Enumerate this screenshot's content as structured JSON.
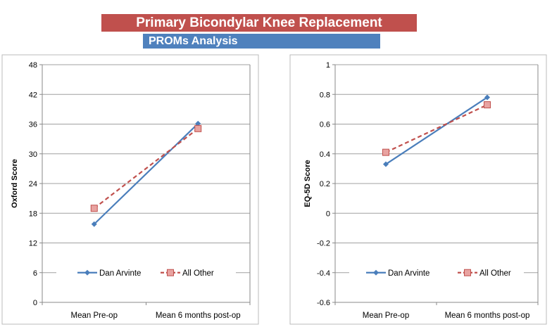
{
  "header": {
    "title": "Primary Bicondylar Knee Replacement",
    "subtitle": "PROMs Analysis"
  },
  "colors": {
    "title_bg": "#c0504d",
    "subtitle_bg": "#4f81bd",
    "dan": "#4a7ebb",
    "other": "#c0504d"
  },
  "chart_data": [
    {
      "type": "line",
      "categories": [
        "Mean Pre-op",
        "Mean 6 months post-op"
      ],
      "ylabel": "Oxford Score",
      "ylim": [
        0,
        48
      ],
      "yticks": [
        "0",
        "6",
        "12",
        "18",
        "24",
        "30",
        "36",
        "42",
        "48"
      ],
      "grid": true,
      "legend": "bottom",
      "series": [
        {
          "name": "Dan Arvinte",
          "values": [
            15.8,
            36.1
          ],
          "style": "solid",
          "marker": "diamond"
        },
        {
          "name": "All Other",
          "values": [
            19.0,
            35.1
          ],
          "style": "dashed",
          "marker": "square"
        }
      ]
    },
    {
      "type": "line",
      "categories": [
        "Mean Pre-op",
        "Mean 6 months post-op"
      ],
      "ylabel": "EQ-5D Score",
      "ylim": [
        -0.6,
        1
      ],
      "yticks": [
        "-0.6",
        "-0.4",
        "-0.2",
        "0",
        "0.2",
        "0.4",
        "0.6",
        "0.8",
        "1"
      ],
      "grid": true,
      "legend": "bottom",
      "series": [
        {
          "name": "Dan Arvinte",
          "values": [
            0.33,
            0.78
          ],
          "style": "solid",
          "marker": "diamond"
        },
        {
          "name": "All Other",
          "values": [
            0.41,
            0.73
          ],
          "style": "dashed",
          "marker": "square"
        }
      ]
    }
  ]
}
